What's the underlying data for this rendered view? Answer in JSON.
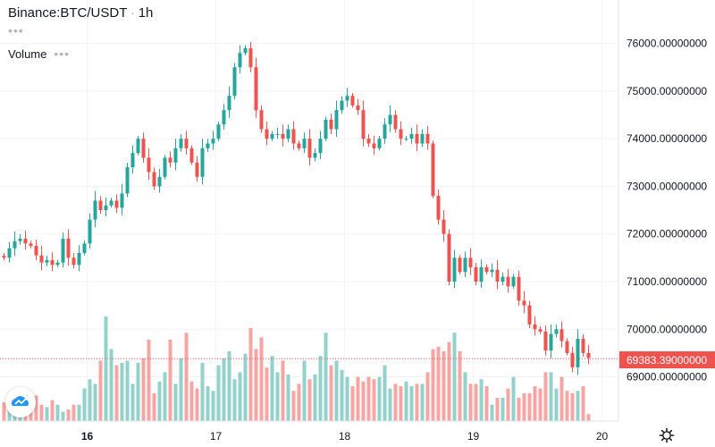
{
  "header": {
    "symbol": "Binance:BTC/USDT",
    "separator": "·",
    "interval": "1h",
    "dots": "•••",
    "volume_label": "Volume",
    "volume_dots": "•••"
  },
  "colors": {
    "up": "#26a69a",
    "down": "#ef5350",
    "up_volume": "#93d2cb",
    "down_volume": "#f5a6a3",
    "grid": "#f0f3fa",
    "price_line": "#ef5350",
    "axis_text": "#131722"
  },
  "chart_data": {
    "type": "candlestick",
    "title": "Binance:BTC/USDT · 1h",
    "current_price": 69383.39,
    "current_price_label": "69383.39000000",
    "y_ticks": [
      {
        "value": 76000,
        "label": "76000.00000000"
      },
      {
        "value": 75000,
        "label": "75000.00000000"
      },
      {
        "value": 74000,
        "label": "74000.00000000"
      },
      {
        "value": 73000,
        "label": "73000.00000000"
      },
      {
        "value": 72000,
        "label": "72000.00000000"
      },
      {
        "value": 71000,
        "label": "71000.00000000"
      },
      {
        "value": 70000,
        "label": "70000.00000000"
      },
      {
        "value": 69000,
        "label": "69000.00000000"
      }
    ],
    "x_ticks": [
      {
        "label": "16",
        "bold": true,
        "index": 15.5
      },
      {
        "label": "17",
        "bold": false,
        "index": 39.5
      },
      {
        "label": "18",
        "bold": false,
        "index": 63.5
      },
      {
        "label": "19",
        "bold": false,
        "index": 87.5
      },
      {
        "label": "20",
        "bold": false,
        "index": 111.5
      }
    ],
    "closes": [
      71500,
      71700,
      71850,
      71900,
      71800,
      71750,
      71550,
      71400,
      71450,
      71350,
      71400,
      71900,
      71500,
      71350,
      71600,
      71800,
      72300,
      72700,
      72500,
      72600,
      72700,
      72550,
      72850,
      73400,
      73700,
      74000,
      73600,
      73300,
      73000,
      73200,
      73600,
      73500,
      73800,
      74000,
      73800,
      73500,
      73200,
      73800,
      73900,
      74000,
      74300,
      74600,
      74900,
      75500,
      75800,
      75900,
      75500,
      74600,
      74200,
      74000,
      74100,
      74100,
      74000,
      74200,
      73900,
      73800,
      74000,
      73600,
      73700,
      74000,
      74400,
      74200,
      74600,
      74800,
      74900,
      74700,
      74600,
      74000,
      73900,
      73800,
      74000,
      74300,
      74500,
      74200,
      74000,
      74000,
      74100,
      73900,
      74100,
      73900,
      72800,
      72300,
      72000,
      71000,
      71500,
      71200,
      71500,
      71300,
      71000,
      71300,
      71200,
      71250,
      71000,
      71100,
      70900,
      71100,
      70600,
      70500,
      70100,
      70000,
      69950,
      69550,
      69900,
      70000,
      69750,
      69500,
      69200,
      69800,
      69500,
      69400
    ],
    "volumes": [
      8,
      11,
      6,
      8,
      12,
      12,
      11,
      7,
      6,
      9,
      7,
      4,
      5,
      7,
      7,
      14,
      18,
      16,
      26,
      45,
      31,
      24,
      25,
      26,
      16,
      25,
      27,
      35,
      12,
      17,
      21,
      35,
      16,
      27,
      38,
      17,
      14,
      25,
      15,
      13,
      24,
      27,
      30,
      18,
      21,
      29,
      40,
      31,
      36,
      23,
      28,
      21,
      26,
      20,
      13,
      16,
      26,
      18,
      20,
      28,
      38,
      24,
      26,
      22,
      19,
      15,
      19,
      17,
      19,
      18,
      19,
      24,
      14,
      16,
      15,
      17,
      15,
      16,
      16,
      21,
      31,
      32,
      30,
      34,
      38,
      30,
      21,
      16,
      16,
      18,
      15,
      7,
      10,
      10,
      14,
      19,
      10,
      12,
      12,
      15,
      14,
      21,
      21,
      14,
      19,
      13,
      12,
      13,
      15,
      3
    ],
    "volume_label": "Volume",
    "interval": "1h"
  }
}
